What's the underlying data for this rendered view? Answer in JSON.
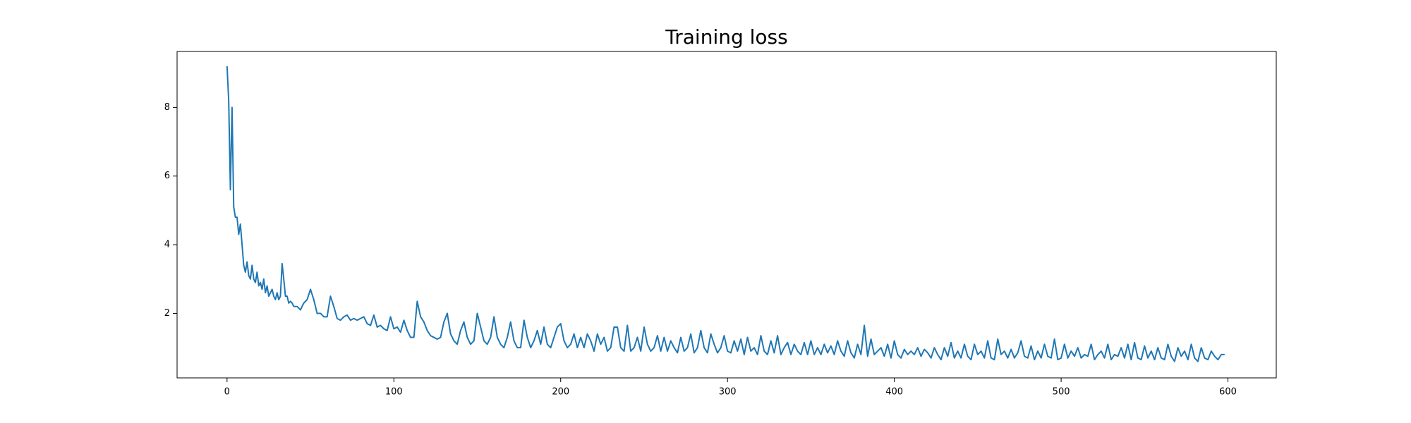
{
  "chart_data": {
    "type": "line",
    "title": "Training loss",
    "color": "#1f77b4",
    "x": [
      0,
      1,
      2,
      3,
      4,
      5,
      6,
      7,
      8,
      9,
      10,
      11,
      12,
      13,
      14,
      15,
      16,
      17,
      18,
      19,
      20,
      21,
      22,
      23,
      24,
      25,
      26,
      27,
      28,
      29,
      30,
      31,
      32,
      33,
      34,
      35,
      36,
      37,
      38,
      39,
      40,
      42,
      44,
      46,
      48,
      50,
      52,
      54,
      56,
      58,
      60,
      62,
      64,
      66,
      68,
      70,
      72,
      74,
      76,
      78,
      80,
      82,
      84,
      86,
      88,
      90,
      92,
      94,
      96,
      98,
      100,
      102,
      104,
      106,
      108,
      110,
      112,
      114,
      116,
      118,
      120,
      122,
      124,
      126,
      128,
      130,
      132,
      134,
      136,
      138,
      140,
      142,
      144,
      146,
      148,
      150,
      152,
      154,
      156,
      158,
      160,
      162,
      164,
      166,
      168,
      170,
      172,
      174,
      176,
      178,
      180,
      182,
      184,
      186,
      188,
      190,
      192,
      194,
      196,
      198,
      200,
      202,
      204,
      206,
      208,
      210,
      212,
      214,
      216,
      218,
      220,
      222,
      224,
      226,
      228,
      230,
      232,
      234,
      236,
      238,
      240,
      242,
      244,
      246,
      248,
      250,
      252,
      254,
      256,
      258,
      260,
      262,
      264,
      266,
      268,
      270,
      272,
      274,
      276,
      278,
      280,
      282,
      284,
      286,
      288,
      290,
      292,
      294,
      296,
      298,
      300,
      302,
      304,
      306,
      308,
      310,
      312,
      314,
      316,
      318,
      320,
      322,
      324,
      326,
      328,
      330,
      332,
      334,
      336,
      338,
      340,
      342,
      344,
      346,
      348,
      350,
      352,
      354,
      356,
      358,
      360,
      362,
      364,
      366,
      368,
      370,
      372,
      374,
      376,
      378,
      380,
      382,
      384,
      386,
      388,
      390,
      392,
      394,
      396,
      398,
      400,
      402,
      404,
      406,
      408,
      410,
      412,
      414,
      416,
      418,
      420,
      422,
      424,
      426,
      428,
      430,
      432,
      434,
      436,
      438,
      440,
      442,
      444,
      446,
      448,
      450,
      452,
      454,
      456,
      458,
      460,
      462,
      464,
      466,
      468,
      470,
      472,
      474,
      476,
      478,
      480,
      482,
      484,
      486,
      488,
      490,
      492,
      494,
      496,
      498,
      500,
      502,
      504,
      506,
      508,
      510,
      512,
      514,
      516,
      518,
      520,
      522,
      524,
      526,
      528,
      530,
      532,
      534,
      536,
      538,
      540,
      542,
      544,
      546,
      548,
      550,
      552,
      554,
      556,
      558,
      560,
      562,
      564,
      566,
      568,
      570,
      572,
      574,
      576,
      578,
      580,
      582,
      584,
      586,
      588,
      590,
      592,
      594,
      596,
      598
    ],
    "values": [
      9.2,
      8.2,
      5.6,
      8.0,
      5.1,
      4.8,
      4.8,
      4.3,
      4.6,
      4.0,
      3.4,
      3.2,
      3.5,
      3.1,
      3.0,
      3.4,
      3.0,
      2.9,
      3.2,
      2.8,
      2.9,
      2.7,
      3.0,
      2.6,
      2.8,
      2.5,
      2.6,
      2.7,
      2.5,
      2.4,
      2.6,
      2.4,
      2.5,
      3.45,
      3.0,
      2.5,
      2.5,
      2.3,
      2.35,
      2.3,
      2.2,
      2.2,
      2.1,
      2.3,
      2.4,
      2.7,
      2.4,
      2.0,
      2.0,
      1.9,
      1.9,
      2.5,
      2.2,
      1.85,
      1.8,
      1.9,
      1.95,
      1.8,
      1.85,
      1.8,
      1.85,
      1.9,
      1.7,
      1.65,
      1.95,
      1.6,
      1.65,
      1.55,
      1.5,
      1.9,
      1.55,
      1.6,
      1.45,
      1.8,
      1.5,
      1.3,
      1.3,
      2.35,
      1.9,
      1.75,
      1.5,
      1.35,
      1.3,
      1.25,
      1.3,
      1.75,
      2.0,
      1.4,
      1.2,
      1.1,
      1.5,
      1.75,
      1.3,
      1.1,
      1.2,
      2.0,
      1.6,
      1.2,
      1.1,
      1.3,
      1.9,
      1.3,
      1.1,
      1.0,
      1.3,
      1.75,
      1.2,
      1.0,
      1.0,
      1.8,
      1.3,
      1.0,
      1.2,
      1.5,
      1.1,
      1.6,
      1.1,
      1.0,
      1.3,
      1.6,
      1.7,
      1.2,
      1.0,
      1.1,
      1.4,
      1.0,
      1.3,
      1.0,
      1.4,
      1.2,
      0.9,
      1.4,
      1.1,
      1.3,
      0.9,
      1.0,
      1.6,
      1.6,
      1.0,
      0.9,
      1.65,
      0.9,
      1.0,
      1.3,
      0.9,
      1.6,
      1.1,
      0.9,
      1.0,
      1.35,
      0.9,
      1.3,
      0.9,
      1.2,
      1.0,
      0.85,
      1.3,
      0.9,
      1.0,
      1.4,
      0.85,
      1.0,
      1.5,
      1.0,
      0.85,
      1.4,
      1.1,
      0.85,
      1.0,
      1.35,
      0.9,
      0.85,
      1.2,
      0.9,
      1.25,
      0.8,
      1.3,
      0.9,
      1.0,
      0.8,
      1.35,
      0.9,
      0.8,
      1.2,
      0.85,
      1.35,
      0.8,
      1.0,
      1.15,
      0.8,
      1.1,
      0.9,
      0.8,
      1.15,
      0.8,
      1.2,
      0.8,
      1.0,
      0.8,
      1.1,
      0.85,
      1.05,
      0.8,
      1.2,
      0.9,
      0.75,
      1.2,
      0.85,
      0.7,
      1.1,
      0.8,
      1.65,
      0.75,
      1.25,
      0.8,
      0.9,
      1.0,
      0.75,
      1.1,
      0.7,
      1.2,
      0.8,
      0.7,
      0.95,
      0.8,
      0.9,
      0.8,
      1.0,
      0.75,
      0.95,
      0.85,
      0.7,
      1.0,
      0.8,
      0.65,
      1.0,
      0.75,
      1.15,
      0.7,
      0.9,
      0.7,
      1.1,
      0.75,
      0.65,
      1.1,
      0.8,
      0.9,
      0.7,
      1.2,
      0.7,
      0.65,
      1.25,
      0.8,
      0.9,
      0.7,
      0.95,
      0.7,
      0.85,
      1.2,
      0.75,
      0.7,
      1.05,
      0.65,
      0.9,
      0.7,
      1.1,
      0.75,
      0.7,
      1.25,
      0.65,
      0.7,
      1.1,
      0.7,
      0.9,
      0.75,
      1.0,
      0.7,
      0.8,
      0.75,
      1.1,
      0.65,
      0.8,
      0.9,
      0.7,
      1.1,
      0.65,
      0.8,
      0.75,
      1.0,
      0.7,
      1.1,
      0.65,
      1.15,
      0.7,
      0.65,
      1.05,
      0.7,
      0.9,
      0.65,
      1.0,
      0.7,
      0.65,
      1.1,
      0.75,
      0.6,
      1.0,
      0.75,
      0.9,
      0.65,
      1.1,
      0.7,
      0.6,
      1.0,
      0.7,
      0.65,
      0.9,
      0.75,
      0.65,
      0.8,
      0.8
    ],
    "xlim": [
      -29.95,
      628.95
    ],
    "ylim": [
      0.12,
      9.63
    ],
    "xticks": [
      0,
      100,
      200,
      300,
      400,
      500,
      600
    ],
    "yticks": [
      2,
      4,
      6,
      8
    ]
  }
}
